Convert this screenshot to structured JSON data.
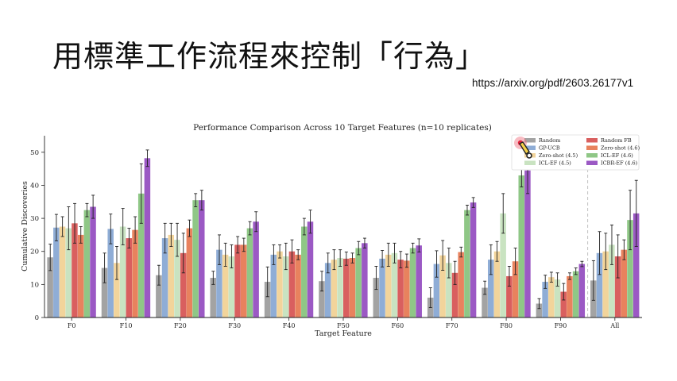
{
  "slide": {
    "title": "用標準工作流程來控制「行為」",
    "source_url": "https://arxiv.org/pdf/2603.26177v1"
  },
  "chart_data": {
    "type": "bar",
    "title": "Performance Comparison Across 10 Target Features (n=10 replicates)",
    "xlabel": "Target Feature",
    "ylabel": "Cumulative Discoveries",
    "ylim": [
      0,
      55
    ],
    "yticks": [
      0,
      10,
      20,
      30,
      40,
      50
    ],
    "grid": false,
    "legend_position": "top-right",
    "categories": [
      "F0",
      "F10",
      "F20",
      "F30",
      "F40",
      "F50",
      "F60",
      "F70",
      "F80",
      "F90",
      "All"
    ],
    "series": [
      {
        "name": "Random",
        "color": "#a3a3a3",
        "values": [
          18.2,
          15.0,
          12.8,
          12.0,
          10.8,
          11.0,
          12.0,
          6.0,
          9.0,
          4.2,
          11.2
        ],
        "errors": [
          4.0,
          4.5,
          3.0,
          2.0,
          4.5,
          3.0,
          3.5,
          3.0,
          2.0,
          1.5,
          6.0
        ]
      },
      {
        "name": "GP-UCB",
        "color": "#8fadd6",
        "values": [
          27.2,
          26.8,
          24.0,
          20.5,
          19.0,
          16.5,
          17.8,
          16.2,
          17.5,
          10.8,
          19.5
        ],
        "errors": [
          4.0,
          4.5,
          4.5,
          4.5,
          3.0,
          3.0,
          2.5,
          4.0,
          4.5,
          2.0,
          6.5
        ]
      },
      {
        "name": "Zero-shot (4.5)",
        "color": "#f2d49b",
        "values": [
          27.5,
          16.5,
          25.0,
          19.0,
          20.0,
          17.5,
          19.0,
          18.8,
          20.0,
          12.2,
          20.0
        ],
        "errors": [
          3.0,
          5.0,
          3.5,
          3.5,
          2.0,
          3.0,
          3.5,
          4.5,
          3.0,
          1.5,
          5.5
        ]
      },
      {
        "name": "ICL-EF (4.5)",
        "color": "#c9e3c1",
        "values": [
          27.0,
          27.5,
          23.5,
          18.5,
          18.5,
          18.0,
          19.5,
          16.5,
          31.5,
          11.5,
          22.0
        ],
        "errors": [
          6.5,
          5.5,
          5.0,
          3.5,
          4.0,
          2.5,
          3.0,
          4.5,
          6.0,
          2.0,
          6.0
        ]
      },
      {
        "name": "Random FB",
        "color": "#d95f5f",
        "values": [
          28.5,
          24.0,
          19.5,
          22.0,
          20.0,
          17.8,
          17.5,
          13.5,
          12.5,
          7.8,
          18.5
        ],
        "errors": [
          6.0,
          3.0,
          6.0,
          2.5,
          3.5,
          2.0,
          2.5,
          3.5,
          3.0,
          2.5,
          6.5
        ]
      },
      {
        "name": "Zero-shot (4.6)",
        "color": "#e8825e",
        "values": [
          25.0,
          26.5,
          27.0,
          22.0,
          19.0,
          18.0,
          17.2,
          19.8,
          17.0,
          12.5,
          20.5
        ],
        "errors": [
          2.5,
          4.0,
          2.5,
          2.0,
          1.5,
          1.5,
          2.0,
          1.5,
          4.0,
          1.0,
          3.0
        ]
      },
      {
        "name": "ICL-EF (4.6)",
        "color": "#8fc786",
        "values": [
          32.5,
          37.5,
          35.5,
          27.0,
          27.5,
          21.0,
          21.0,
          32.5,
          43.0,
          14.0,
          29.5
        ],
        "errors": [
          2.0,
          9.0,
          2.0,
          2.0,
          2.5,
          2.0,
          1.5,
          1.5,
          3.5,
          1.0,
          9.0
        ]
      },
      {
        "name": "ICBR-EF (4.6)",
        "color": "#9b59c4",
        "values": [
          33.5,
          48.2,
          35.5,
          29.0,
          29.0,
          22.5,
          21.8,
          34.8,
          44.5,
          16.2,
          31.5
        ],
        "errors": [
          3.5,
          2.5,
          3.0,
          3.0,
          3.5,
          1.5,
          2.0,
          1.5,
          7.0,
          0.8,
          10.0
        ]
      }
    ]
  }
}
